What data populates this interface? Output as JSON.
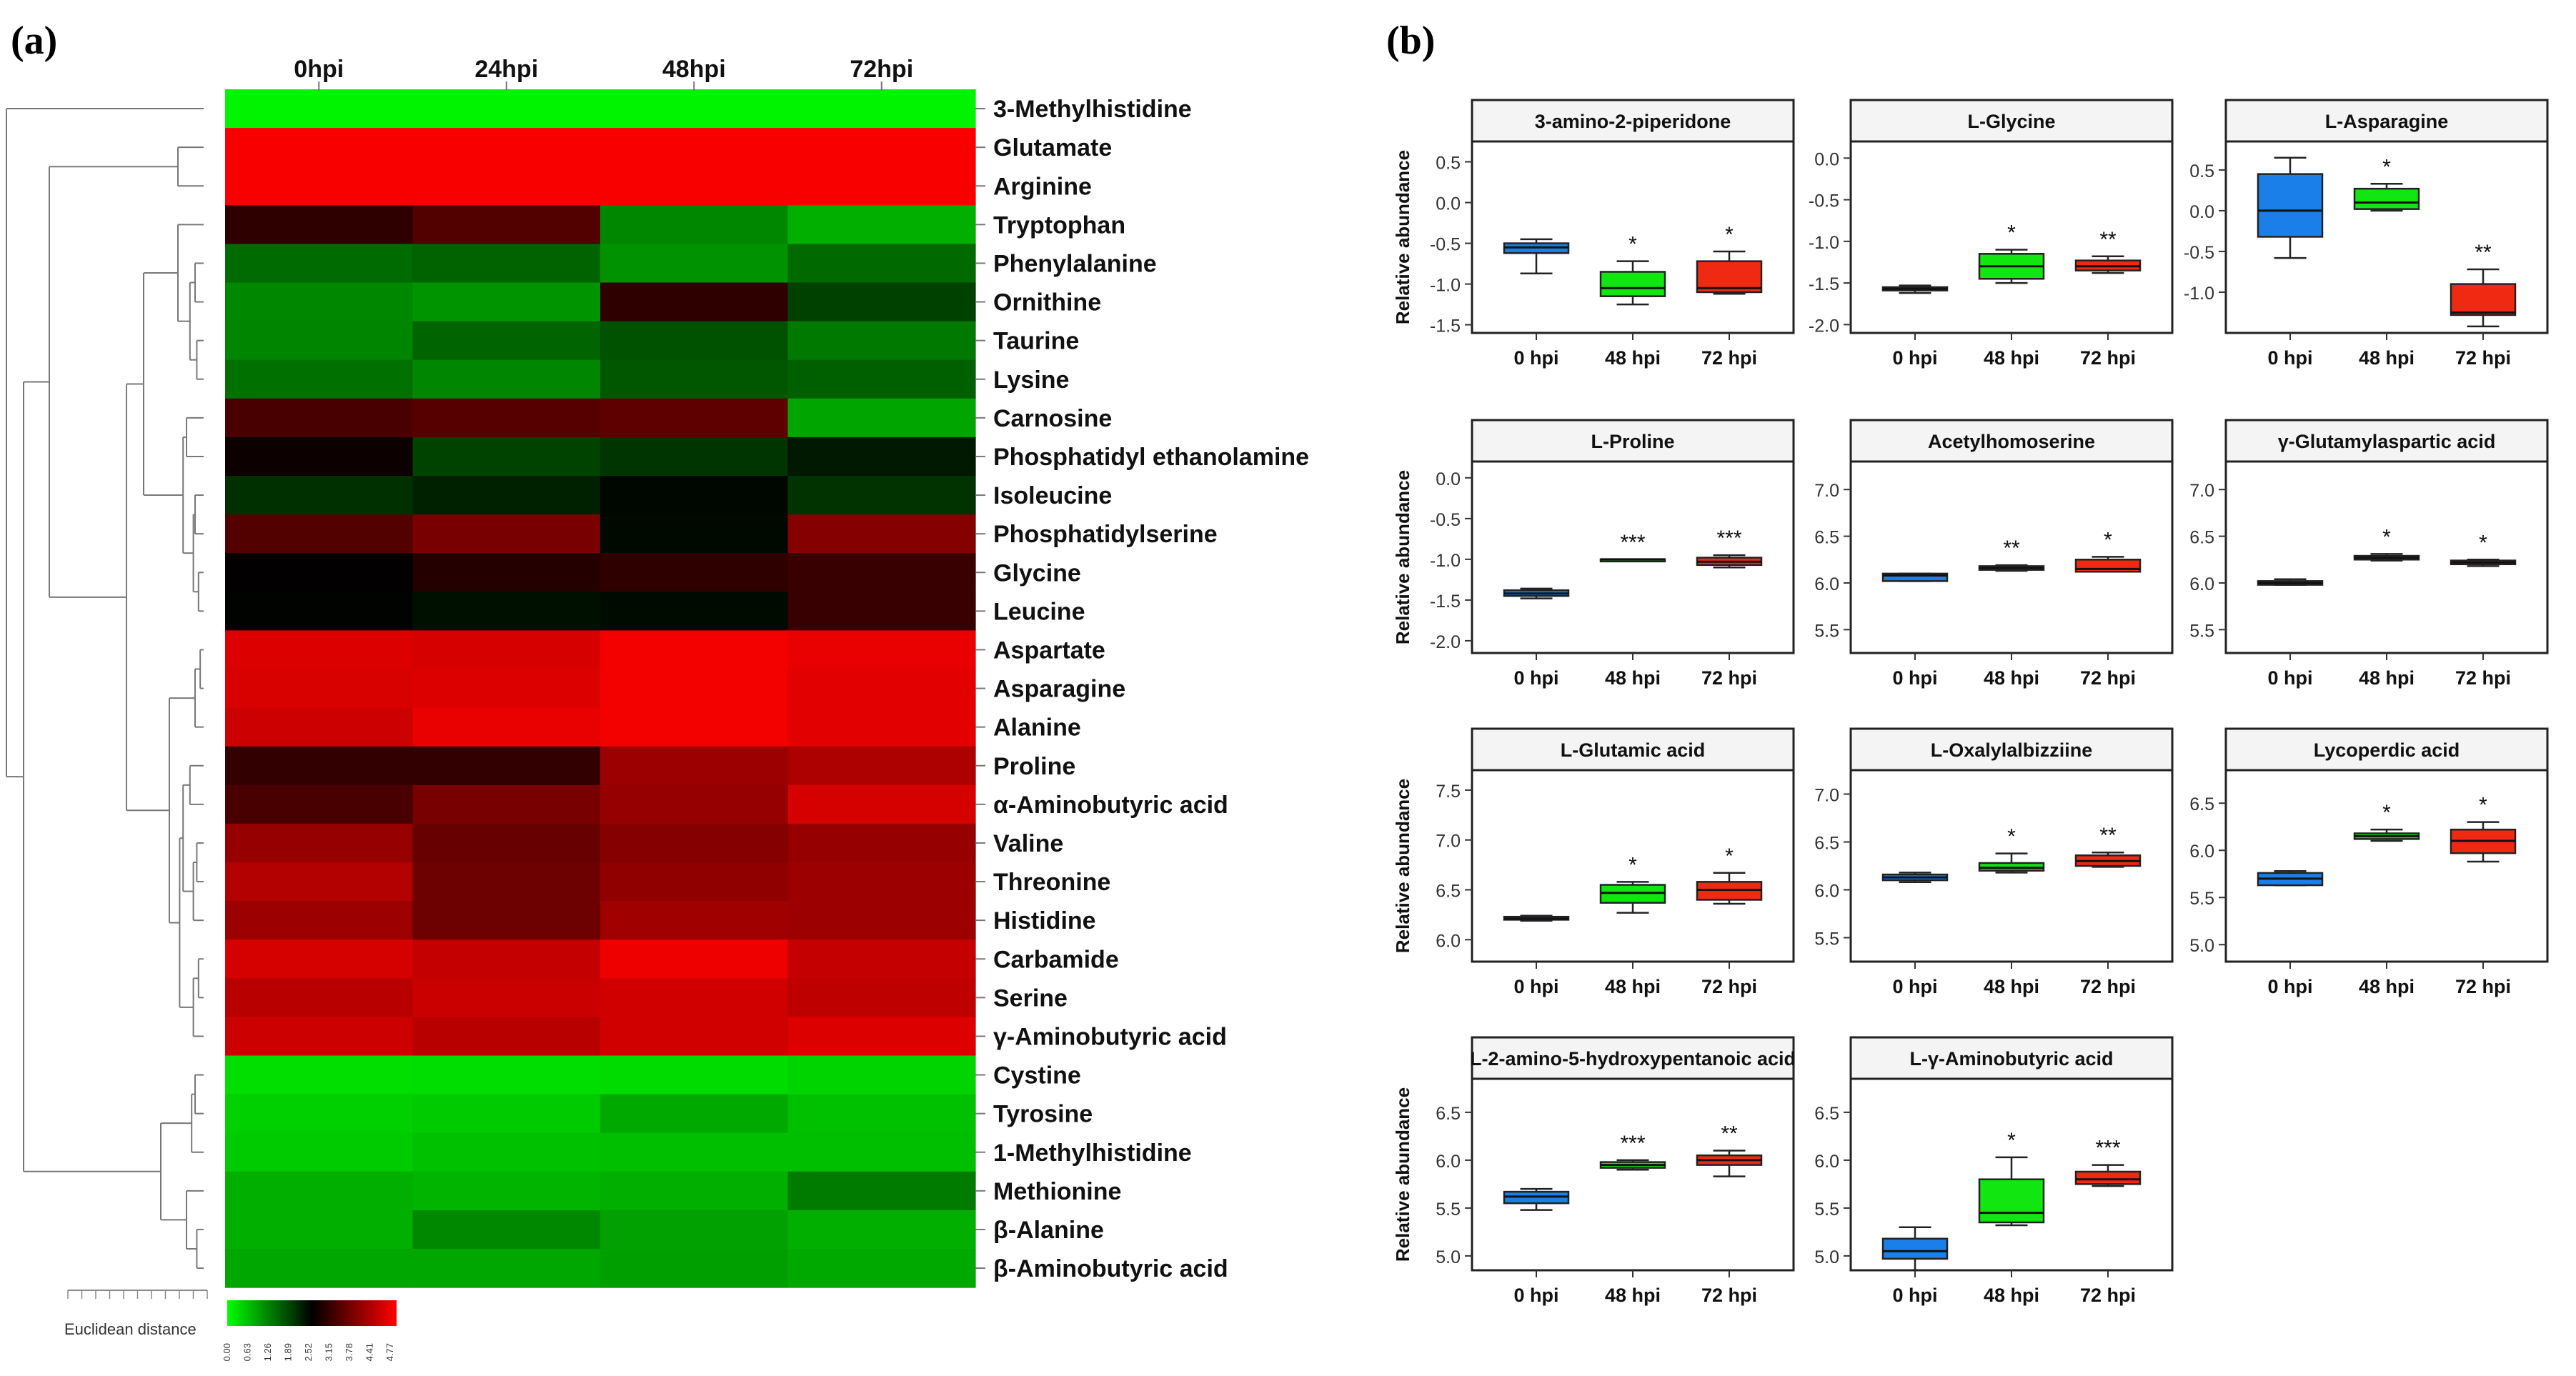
{
  "panel_a_label": "(a)",
  "panel_b_label": "(b)",
  "colors": {
    "low": "#00ff00",
    "mid": "#000000",
    "high": "#ff0000",
    "box_0": "#1a7fe8",
    "box_48": "#11e611",
    "box_72": "#f02a12"
  },
  "chart_data": [
    {
      "type": "heatmap",
      "panel": "(a)",
      "columns": [
        "0hpi",
        "24hpi",
        "48hpi",
        "72hpi"
      ],
      "rows": [
        "3-Methylhistidine",
        "Glutamate",
        "Arginine",
        "Tryptophan",
        "Phenylalanine",
        "Ornithine",
        "Taurine",
        "Lysine",
        "Carnosine",
        "Phosphatidyl ethanolamine",
        "Isoleucine",
        "Phosphatidylserine",
        "Glycine",
        "Leucine",
        "Aspartate",
        "Asparagine",
        "Alanine",
        "Proline",
        "α-Aminobutyric acid",
        "Valine",
        "Threonine",
        "Histidine",
        "Carbamide",
        "Serine",
        "γ-Aminobutyric acid",
        "Cystine",
        "Tyrosine",
        "1-Methylhistidine",
        "Methionine",
        "β-Alanine",
        "β-Aminobutyric acid"
      ],
      "values": [
        [
          0.1,
          0.1,
          0.1,
          0.1
        ],
        [
          4.7,
          4.7,
          4.7,
          4.7
        ],
        [
          4.7,
          4.7,
          4.7,
          4.7
        ],
        [
          2.82,
          3.15,
          1.12,
          0.75
        ],
        [
          1.38,
          1.46,
          1.02,
          1.4
        ],
        [
          1.12,
          0.99,
          2.82,
          1.78
        ],
        [
          1.14,
          1.45,
          1.63,
          1.25
        ],
        [
          1.33,
          1.13,
          1.57,
          1.49
        ],
        [
          3.07,
          3.19,
          3.27,
          0.84
        ],
        [
          2.5,
          1.76,
          1.9,
          2.15
        ],
        [
          1.94,
          2.08,
          2.32,
          1.91
        ],
        [
          3.15,
          3.51,
          2.3,
          3.63
        ],
        [
          2.4,
          2.72,
          2.82,
          2.92
        ],
        [
          2.36,
          2.24,
          2.28,
          2.92
        ],
        [
          4.45,
          4.39,
          4.66,
          4.56
        ],
        [
          4.41,
          4.45,
          4.66,
          4.5
        ],
        [
          4.3,
          4.56,
          4.66,
          4.5
        ],
        [
          2.85,
          2.85,
          3.84,
          4.0
        ],
        [
          3.07,
          3.51,
          3.79,
          4.38
        ],
        [
          3.79,
          3.35,
          3.63,
          3.79
        ],
        [
          4.06,
          3.4,
          3.73,
          3.84
        ],
        [
          3.84,
          3.4,
          3.89,
          3.84
        ],
        [
          4.38,
          4.22,
          4.62,
          4.22
        ],
        [
          4.11,
          4.27,
          4.33,
          4.17
        ],
        [
          4.3,
          4.11,
          4.33,
          4.45
        ],
        [
          0.3,
          0.32,
          0.34,
          0.4
        ],
        [
          0.45,
          0.5,
          0.8,
          0.58
        ],
        [
          0.5,
          0.58,
          0.61,
          0.6
        ],
        [
          0.75,
          0.7,
          0.75,
          1.23
        ],
        [
          0.75,
          1.1,
          0.88,
          0.75
        ],
        [
          0.82,
          0.82,
          0.9,
          0.8
        ]
      ],
      "legend_ticks": [
        "0.00",
        "0.63",
        "1.26",
        "1.89",
        "2.52",
        "3.15",
        "3.78",
        "4.41",
        "4.77"
      ],
      "dendrogram_label": "Euclidean distance",
      "dendrogram_scale_ticks": [
        "",
        "",
        "",
        "",
        "",
        "",
        "",
        "",
        "",
        "",
        ""
      ]
    },
    {
      "type": "box",
      "panel": "(b)",
      "ylabel": "Relative abundance",
      "plots": [
        {
          "title": "3-amino-2-piperidone",
          "categories": [
            "0 hpi",
            "48 hpi",
            "72 hpi"
          ],
          "ylim": [
            -1.6,
            0.75
          ],
          "yticks": [
            "0.5",
            "0.0",
            "-0.5",
            "-1.0",
            "-1.5"
          ],
          "boxes": [
            {
              "min": -0.87,
              "q1": -0.62,
              "med": -0.55,
              "q3": -0.5,
              "max": -0.45,
              "sig": ""
            },
            {
              "min": -1.25,
              "q1": -1.15,
              "med": -1.05,
              "q3": -0.85,
              "max": -0.72,
              "sig": "*"
            },
            {
              "min": -1.12,
              "q1": -1.1,
              "med": -1.05,
              "q3": -0.72,
              "max": -0.6,
              "sig": "*"
            }
          ]
        },
        {
          "title": "L-Glycine",
          "categories": [
            "0 hpi",
            "48 hpi",
            "72 hpi"
          ],
          "ylim": [
            -2.1,
            0.2
          ],
          "yticks": [
            "0.0",
            "-0.5",
            "-1.0",
            "-1.5",
            "-2.0"
          ],
          "boxes": [
            {
              "min": -1.62,
              "q1": -1.59,
              "med": -1.57,
              "q3": -1.55,
              "max": -1.53,
              "sig": ""
            },
            {
              "min": -1.5,
              "q1": -1.45,
              "med": -1.3,
              "q3": -1.15,
              "max": -1.1,
              "sig": "*"
            },
            {
              "min": -1.38,
              "q1": -1.35,
              "med": -1.3,
              "q3": -1.23,
              "max": -1.18,
              "sig": "**"
            }
          ]
        },
        {
          "title": "L-Asparagine",
          "categories": [
            "0 hpi",
            "48 hpi",
            "72 hpi"
          ],
          "ylim": [
            -1.5,
            0.85
          ],
          "yticks": [
            "0.5",
            "0.0",
            "-0.5",
            "-1.0"
          ],
          "boxes": [
            {
              "min": -0.58,
              "q1": -0.32,
              "med": 0.0,
              "q3": 0.45,
              "max": 0.65,
              "sig": ""
            },
            {
              "min": 0.0,
              "q1": 0.02,
              "med": 0.1,
              "q3": 0.27,
              "max": 0.33,
              "sig": "*"
            },
            {
              "min": -1.42,
              "q1": -1.28,
              "med": -1.25,
              "q3": -0.9,
              "max": -0.72,
              "sig": "**"
            }
          ]
        },
        {
          "title": "L-Proline",
          "categories": [
            "0 hpi",
            "48 hpi",
            "72 hpi"
          ],
          "ylim": [
            -2.15,
            0.2
          ],
          "yticks": [
            "0.0",
            "-0.5",
            "-1.0",
            "-1.5",
            "-2.0"
          ],
          "boxes": [
            {
              "min": -1.48,
              "q1": -1.45,
              "med": -1.42,
              "q3": -1.38,
              "max": -1.36,
              "sig": ""
            },
            {
              "min": -1.0,
              "q1": -1.0,
              "med": -1.0,
              "q3": -1.0,
              "max": -1.0,
              "sig": "***"
            },
            {
              "min": -1.1,
              "q1": -1.07,
              "med": -1.03,
              "q3": -0.98,
              "max": -0.95,
              "sig": "***"
            }
          ]
        },
        {
          "title": "Acetylhomoserine",
          "categories": [
            "0 hpi",
            "48 hpi",
            "72 hpi"
          ],
          "ylim": [
            5.25,
            7.3
          ],
          "yticks": [
            "7.0",
            "6.5",
            "6.0",
            "5.5"
          ],
          "boxes": [
            {
              "min": 6.02,
              "q1": 6.02,
              "med": 6.08,
              "q3": 6.1,
              "max": 6.1,
              "sig": ""
            },
            {
              "min": 6.13,
              "q1": 6.14,
              "med": 6.16,
              "q3": 6.18,
              "max": 6.19,
              "sig": "**"
            },
            {
              "min": 6.12,
              "q1": 6.12,
              "med": 6.15,
              "q3": 6.25,
              "max": 6.28,
              "sig": "*"
            }
          ]
        },
        {
          "title": "γ-Glutamylaspartic acid",
          "categories": [
            "0 hpi",
            "48 hpi",
            "72 hpi"
          ],
          "ylim": [
            5.25,
            7.3
          ],
          "yticks": [
            "7.0",
            "6.5",
            "6.0",
            "5.5"
          ],
          "boxes": [
            {
              "min": 5.98,
              "q1": 5.98,
              "med": 6.0,
              "q3": 6.02,
              "max": 6.04,
              "sig": ""
            },
            {
              "min": 6.24,
              "q1": 6.25,
              "med": 6.27,
              "q3": 6.29,
              "max": 6.31,
              "sig": "*"
            },
            {
              "min": 6.18,
              "q1": 6.2,
              "med": 6.22,
              "q3": 6.24,
              "max": 6.25,
              "sig": "*"
            }
          ]
        },
        {
          "title": "L-Glutamic acid",
          "categories": [
            "0 hpi",
            "48 hpi",
            "72 hpi"
          ],
          "ylim": [
            5.78,
            7.7
          ],
          "yticks": [
            "7.5",
            "7.0",
            "6.5",
            "6.0"
          ],
          "boxes": [
            {
              "min": 6.19,
              "q1": 6.2,
              "med": 6.21,
              "q3": 6.23,
              "max": 6.24,
              "sig": ""
            },
            {
              "min": 6.27,
              "q1": 6.37,
              "med": 6.47,
              "q3": 6.55,
              "max": 6.58,
              "sig": "*"
            },
            {
              "min": 6.36,
              "q1": 6.4,
              "med": 6.5,
              "q3": 6.58,
              "max": 6.67,
              "sig": "*"
            }
          ]
        },
        {
          "title": "L-Oxalylalbizziine",
          "categories": [
            "0 hpi",
            "48 hpi",
            "72 hpi"
          ],
          "ylim": [
            5.25,
            7.25
          ],
          "yticks": [
            "7.0",
            "6.5",
            "6.0",
            "5.5"
          ],
          "boxes": [
            {
              "min": 6.08,
              "q1": 6.1,
              "med": 6.13,
              "q3": 6.16,
              "max": 6.18,
              "sig": ""
            },
            {
              "min": 6.18,
              "q1": 6.2,
              "med": 6.23,
              "q3": 6.28,
              "max": 6.38,
              "sig": "*"
            },
            {
              "min": 6.24,
              "q1": 6.25,
              "med": 6.3,
              "q3": 6.36,
              "max": 6.39,
              "sig": "**"
            }
          ]
        },
        {
          "title": "Lycoperdic acid",
          "categories": [
            "0 hpi",
            "48 hpi",
            "72 hpi"
          ],
          "ylim": [
            4.82,
            6.85
          ],
          "yticks": [
            "6.5",
            "6.0",
            "5.5",
            "5.0"
          ],
          "boxes": [
            {
              "min": 5.63,
              "q1": 5.63,
              "med": 5.7,
              "q3": 5.76,
              "max": 5.78,
              "sig": ""
            },
            {
              "min": 6.1,
              "q1": 6.12,
              "med": 6.15,
              "q3": 6.18,
              "max": 6.22,
              "sig": "*"
            },
            {
              "min": 5.88,
              "q1": 5.97,
              "med": 6.1,
              "q3": 6.22,
              "max": 6.3,
              "sig": "*"
            }
          ]
        },
        {
          "title": "L-2-amino-5-hydroxypentanoic acid",
          "categories": [
            "0 hpi",
            "48 hpi",
            "72 hpi"
          ],
          "ylim": [
            4.85,
            6.85
          ],
          "yticks": [
            "6.5",
            "6.0",
            "5.5",
            "5.0"
          ],
          "boxes": [
            {
              "min": 5.48,
              "q1": 5.55,
              "med": 5.62,
              "q3": 5.67,
              "max": 5.7,
              "sig": ""
            },
            {
              "min": 5.9,
              "q1": 5.92,
              "med": 5.95,
              "q3": 5.98,
              "max": 6.0,
              "sig": "***"
            },
            {
              "min": 5.83,
              "q1": 5.95,
              "med": 6.0,
              "q3": 6.05,
              "max": 6.1,
              "sig": "**"
            }
          ]
        },
        {
          "title": "L-γ-Aminobutyric acid",
          "categories": [
            "0 hpi",
            "48 hpi",
            "72 hpi"
          ],
          "ylim": [
            4.85,
            6.85
          ],
          "yticks": [
            "6.5",
            "6.0",
            "5.5",
            "5.0"
          ],
          "boxes": [
            {
              "min": 4.85,
              "q1": 4.97,
              "med": 5.05,
              "q3": 5.18,
              "max": 5.3,
              "sig": ""
            },
            {
              "min": 5.32,
              "q1": 5.35,
              "med": 5.45,
              "q3": 5.8,
              "max": 6.03,
              "sig": "*"
            },
            {
              "min": 5.73,
              "q1": 5.75,
              "med": 5.8,
              "q3": 5.88,
              "max": 5.95,
              "sig": "***"
            }
          ]
        }
      ]
    }
  ]
}
